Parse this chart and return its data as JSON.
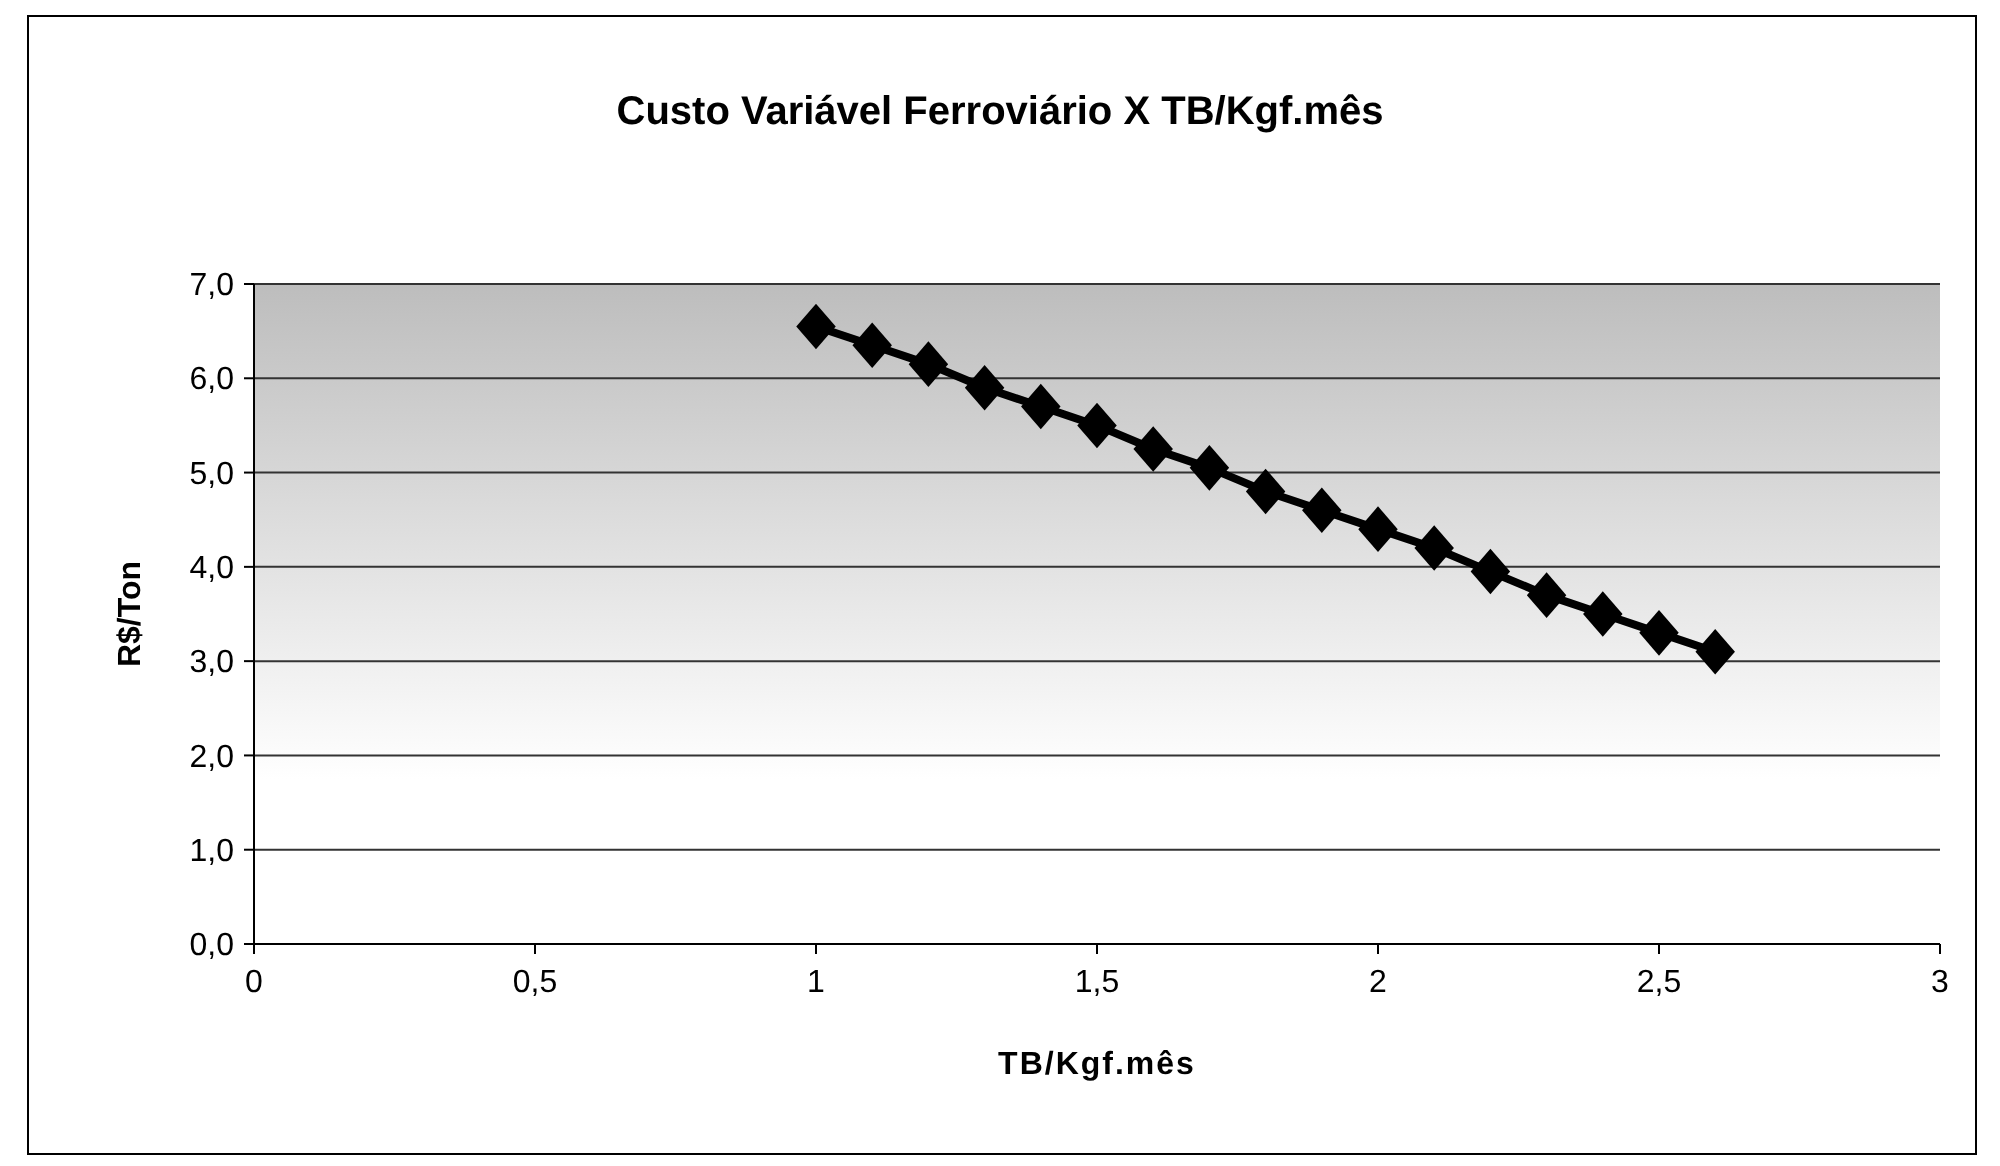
{
  "chart_data": {
    "type": "line",
    "title": "Custo Variável Ferroviário X TB/Kgf.mês",
    "xlabel": "TB/Kgf.mês",
    "ylabel": "R$/Ton",
    "x": [
      1.0,
      1.1,
      1.2,
      1.3,
      1.4,
      1.5,
      1.6,
      1.7,
      1.8,
      1.9,
      2.0,
      2.1,
      2.2,
      2.3,
      2.4,
      2.5,
      2.6
    ],
    "series": [
      {
        "color": "#000000",
        "values": [
          6.55,
          6.35,
          6.15,
          5.9,
          5.7,
          5.5,
          5.25,
          5.05,
          4.8,
          4.6,
          4.4,
          4.2,
          3.95,
          3.7,
          3.5,
          3.3,
          3.1
        ]
      }
    ],
    "xlim": [
      0,
      3
    ],
    "xticks": [
      0,
      {
        "value": 0.5,
        "label": "0,5"
      },
      1,
      {
        "value": 1.5,
        "label": "1,5"
      },
      2,
      {
        "value": 2.5,
        "label": "2,5"
      },
      3
    ],
    "ylim": [
      0,
      7
    ],
    "yticks": [
      {
        "value": 0,
        "label": "0,0"
      },
      {
        "value": 1,
        "label": "1,0"
      },
      {
        "value": 2,
        "label": "2,0"
      },
      {
        "value": 3,
        "label": "3,0"
      },
      {
        "value": 4,
        "label": "4,0"
      },
      {
        "value": 5,
        "label": "5,0"
      },
      {
        "value": 6,
        "label": "6,0"
      },
      {
        "value": 7,
        "label": "7,0"
      }
    ],
    "grid": "y",
    "marker": "diamond",
    "line_style": "solid"
  }
}
